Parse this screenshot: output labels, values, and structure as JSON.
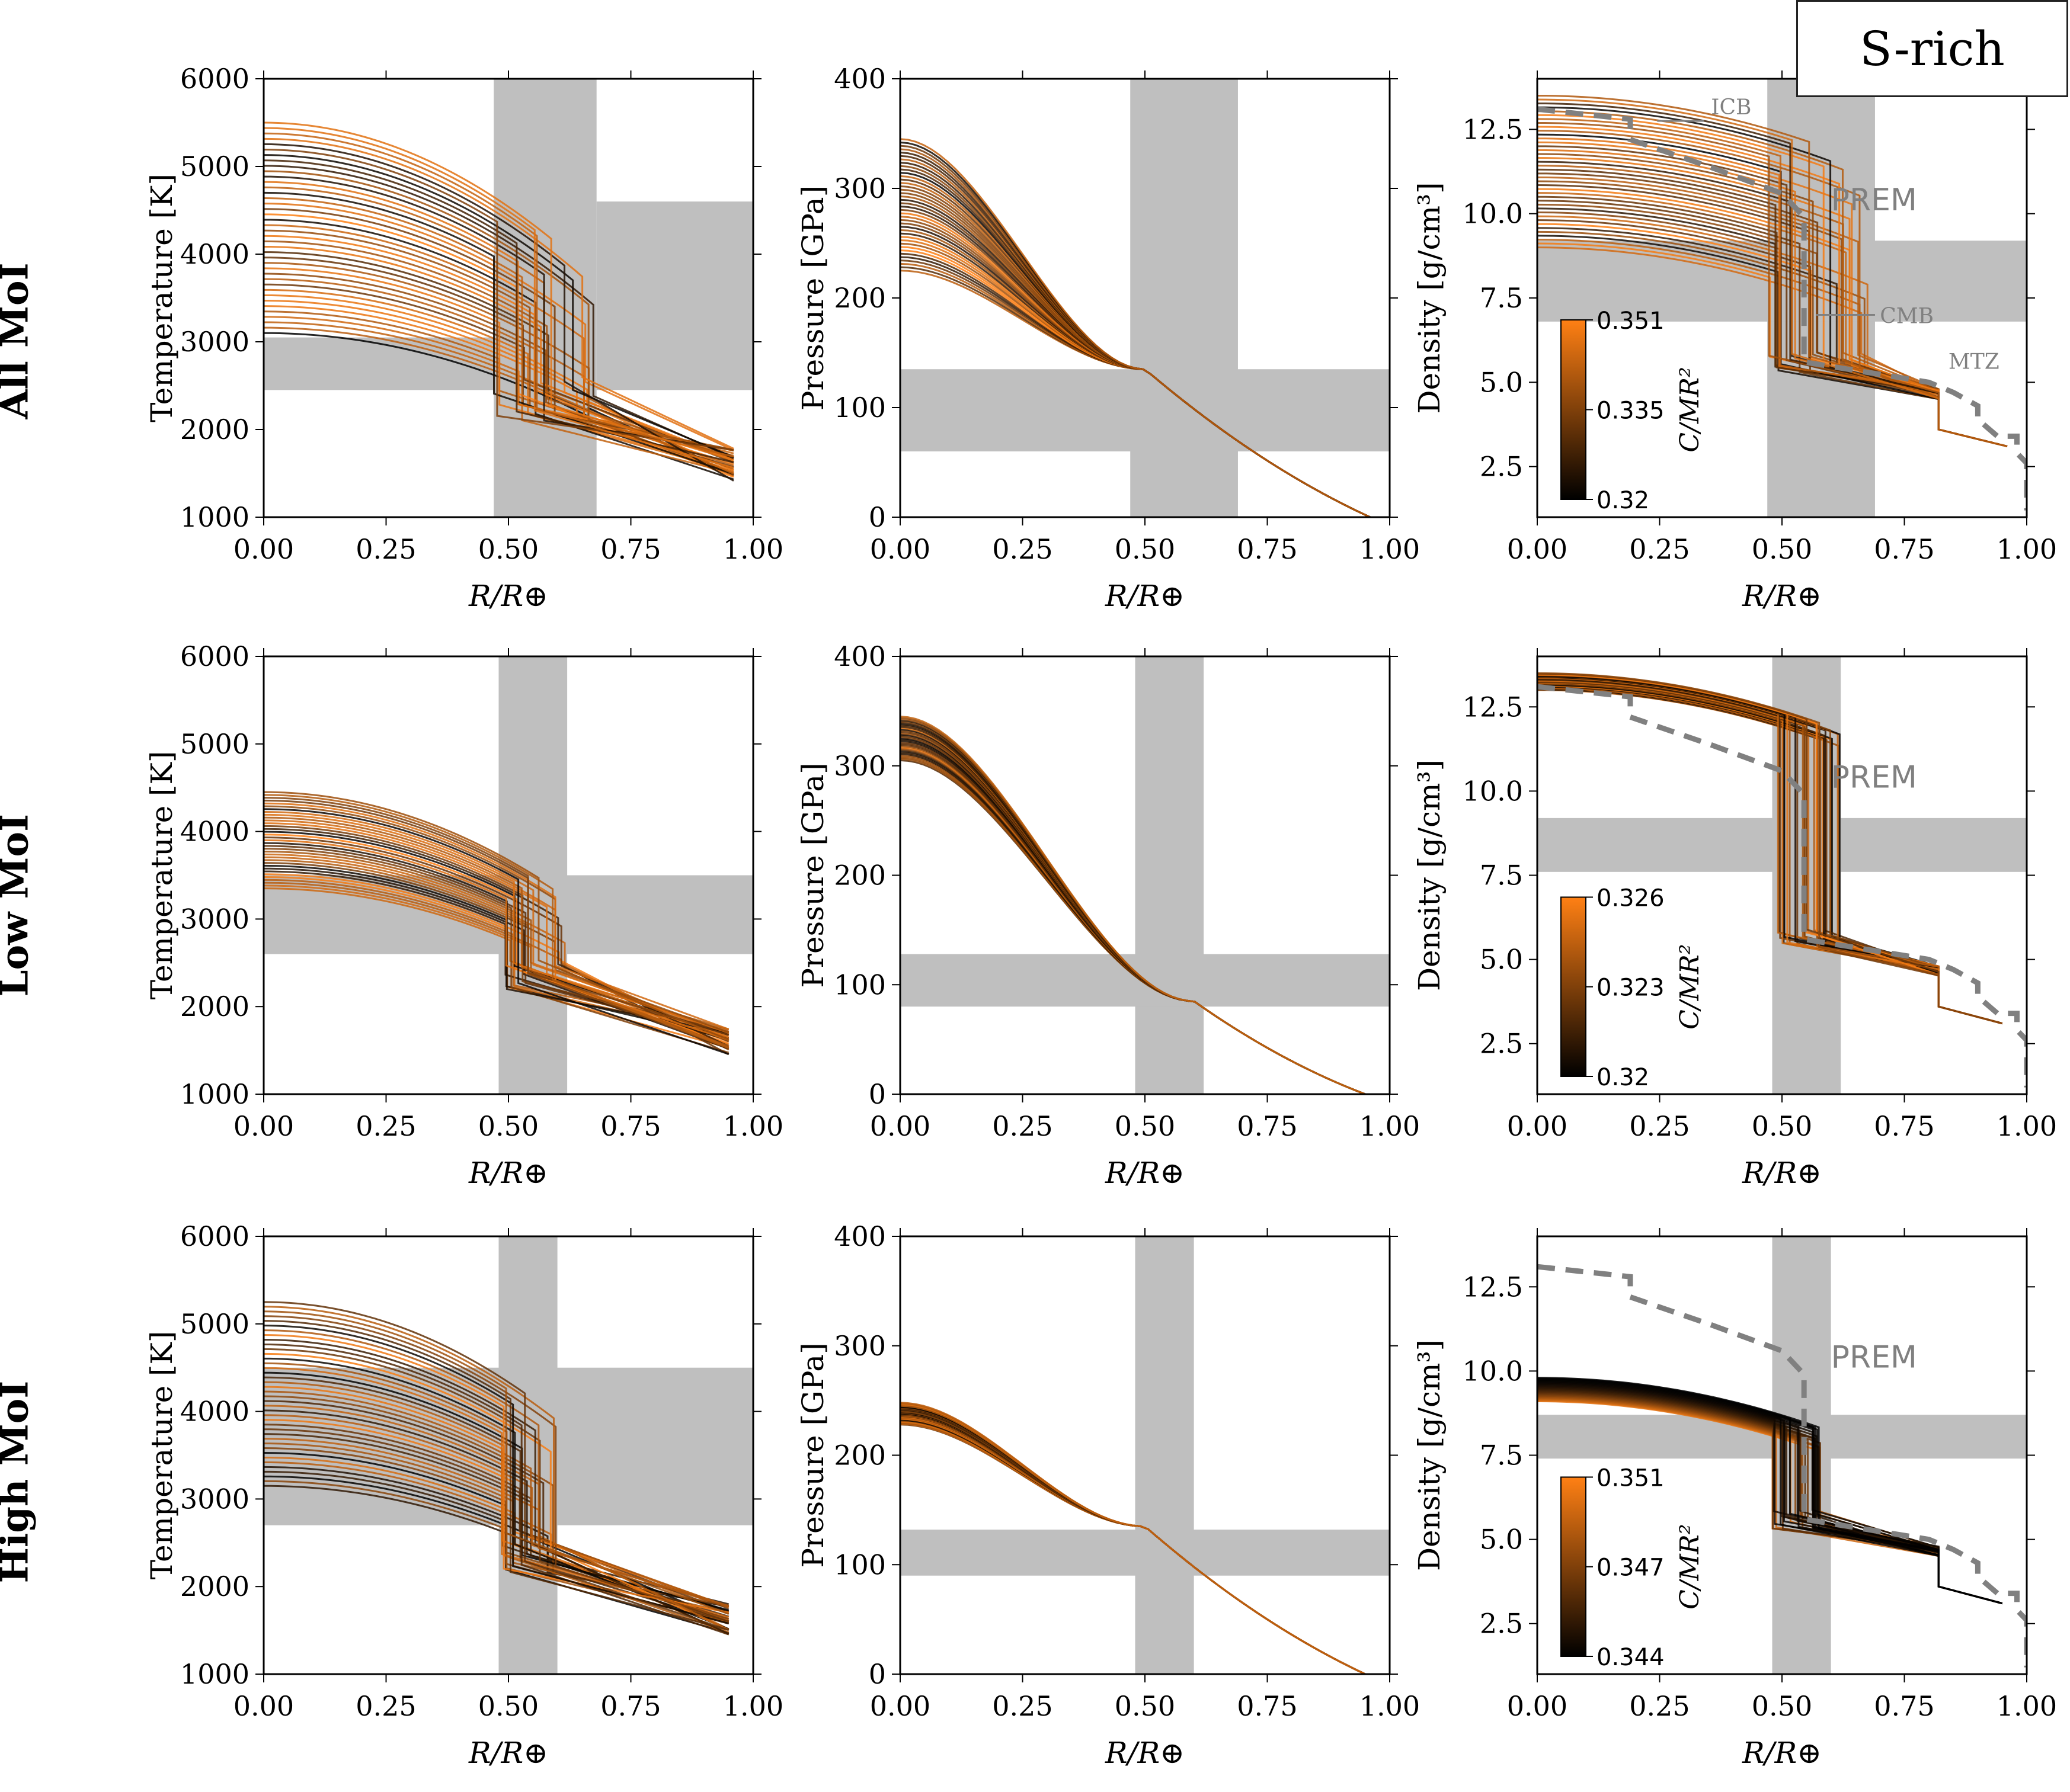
{
  "badge": "S-rich",
  "rows": [
    "All MoI",
    "Low MoI",
    "High MoI"
  ],
  "chart_data": [
    {
      "type": "line",
      "panel": "All MoI / temperature",
      "xlabel": "R/R⊕",
      "ylabel": "Temperature [K]",
      "xlim": [
        0,
        1
      ],
      "ylim": [
        1000,
        6000
      ],
      "xticks": [
        "0.00",
        "0.25",
        "0.50",
        "0.75",
        "1.00"
      ],
      "yticks": [
        "1000",
        "2000",
        "3000",
        "4000",
        "5000",
        "6000"
      ],
      "bands": {
        "x": [
          0.47,
          0.68
        ],
        "y_lo": [
          2450,
          4600
        ],
        "y_hi": [
          2450,
          4600
        ],
        "x_split": 0.68
      },
      "ensemble": {
        "n": 40,
        "center": [
          3100,
          5500
        ],
        "cmb_x": [
          0.47,
          0.68
        ],
        "mantle_start": [
          2100,
          2600
        ],
        "mantle_end": [
          1400,
          1800
        ],
        "end_x": 0.96
      }
    },
    {
      "type": "line",
      "panel": "All MoI / pressure",
      "xlabel": "R/R⊕",
      "ylabel": "Pressure [GPa]",
      "xlim": [
        0,
        1
      ],
      "ylim": [
        0,
        400
      ],
      "xticks": [
        "0.00",
        "0.25",
        "0.50",
        "0.75",
        "1.00"
      ],
      "yticks": [
        "0",
        "100",
        "200",
        "300",
        "400"
      ],
      "bands": {
        "x": [
          0.47,
          0.69
        ],
        "y": [
          60,
          135
        ]
      },
      "ensemble": {
        "n": 40,
        "center": [
          225,
          345
        ],
        "merge_x": 0.5,
        "merge_p": 135,
        "end_x": 0.96
      }
    },
    {
      "type": "line",
      "panel": "All MoI / density",
      "xlabel": "R/R⊕",
      "ylabel": "Density [g/cm³]",
      "xlim": [
        0,
        1
      ],
      "ylim": [
        1,
        14
      ],
      "xticks": [
        "0.00",
        "0.25",
        "0.50",
        "0.75",
        "1.00"
      ],
      "yticks": [
        "2.5",
        "5.0",
        "7.5",
        "10.0",
        "12.5"
      ],
      "bands": {
        "x": [
          0.47,
          0.69
        ],
        "y": [
          6.8,
          9.2
        ]
      },
      "annotations": [
        "ICB",
        "CMB",
        "MTZ"
      ],
      "prem_label": "PREM",
      "colorbar": {
        "label": "C/MR²",
        "ticks": [
          "0.351",
          "0.335",
          "0.32"
        ]
      },
      "ensemble": {
        "n": 40,
        "center": [
          9,
          13.5
        ],
        "cmb_x": [
          0.47,
          0.68
        ],
        "end_x": 0.96
      }
    },
    {
      "type": "line",
      "panel": "Low MoI / temperature",
      "xlabel": "R/R⊕",
      "ylabel": "Temperature [K]",
      "xlim": [
        0,
        1
      ],
      "ylim": [
        1000,
        6000
      ],
      "xticks": [
        "0.00",
        "0.25",
        "0.50",
        "0.75",
        "1.00"
      ],
      "yticks": [
        "1000",
        "2000",
        "3000",
        "4000",
        "5000",
        "6000"
      ],
      "bands": {
        "x": [
          0.48,
          0.62
        ],
        "y": [
          2600,
          3500
        ]
      },
      "ensemble": {
        "n": 35,
        "center": [
          3350,
          4450
        ],
        "cmb_x": [
          0.49,
          0.62
        ],
        "mantle_start": [
          2200,
          2550
        ],
        "mantle_end": [
          1450,
          1750
        ],
        "end_x": 0.95
      }
    },
    {
      "type": "line",
      "panel": "Low MoI / pressure",
      "xlabel": "R/R⊕",
      "ylabel": "Pressure [GPa]",
      "xlim": [
        0,
        1
      ],
      "ylim": [
        0,
        400
      ],
      "xticks": [
        "0.00",
        "0.25",
        "0.50",
        "0.75",
        "1.00"
      ],
      "yticks": [
        "0",
        "100",
        "200",
        "300",
        "400"
      ],
      "bands": {
        "x": [
          0.48,
          0.62
        ],
        "y": [
          80,
          128
        ]
      },
      "ensemble": {
        "n": 35,
        "center": [
          305,
          345
        ],
        "merge_x": 0.6,
        "merge_p": 85,
        "end_x": 0.95
      }
    },
    {
      "type": "line",
      "panel": "Low MoI / density",
      "xlabel": "R/R⊕",
      "ylabel": "Density [g/cm³]",
      "xlim": [
        0,
        1
      ],
      "ylim": [
        1,
        14
      ],
      "xticks": [
        "0.00",
        "0.25",
        "0.50",
        "0.75",
        "1.00"
      ],
      "yticks": [
        "2.5",
        "5.0",
        "7.5",
        "10.0",
        "12.5"
      ],
      "bands": {
        "x": [
          0.48,
          0.62
        ],
        "y": [
          7.6,
          9.2
        ]
      },
      "prem_label": "PREM",
      "colorbar": {
        "label": "C/MR²",
        "ticks": [
          "0.326",
          "0.323",
          "0.32"
        ]
      },
      "ensemble": {
        "n": 35,
        "center": [
          13.0,
          13.5
        ],
        "cmb_x": [
          0.49,
          0.62
        ],
        "end_x": 0.95
      }
    },
    {
      "type": "line",
      "panel": "High MoI / temperature",
      "xlabel": "R/R⊕",
      "ylabel": "Temperature [K]",
      "xlim": [
        0,
        1
      ],
      "ylim": [
        1000,
        6000
      ],
      "xticks": [
        "0.00",
        "0.25",
        "0.50",
        "0.75",
        "1.00"
      ],
      "yticks": [
        "1000",
        "2000",
        "3000",
        "4000",
        "5000",
        "6000"
      ],
      "bands": {
        "x": [
          0.48,
          0.6
        ],
        "y": [
          2700,
          4500
        ]
      },
      "ensemble": {
        "n": 40,
        "center": [
          3150,
          5250
        ],
        "cmb_x": [
          0.48,
          0.6
        ],
        "mantle_start": [
          2150,
          2650
        ],
        "mantle_end": [
          1450,
          1800
        ],
        "end_x": 0.95
      }
    },
    {
      "type": "line",
      "panel": "High MoI / pressure",
      "xlabel": "R/R⊕",
      "ylabel": "Pressure [GPa]",
      "xlim": [
        0,
        1
      ],
      "ylim": [
        0,
        400
      ],
      "xticks": [
        "0.00",
        "0.25",
        "0.50",
        "0.75",
        "1.00"
      ],
      "yticks": [
        "0",
        "100",
        "200",
        "300",
        "400"
      ],
      "bands": {
        "x": [
          0.48,
          0.6
        ],
        "y": [
          90,
          132
        ]
      },
      "ensemble": {
        "n": 35,
        "center": [
          228,
          248
        ],
        "merge_x": 0.5,
        "merge_p": 135,
        "end_x": 0.95
      }
    },
    {
      "type": "line",
      "panel": "High MoI / density",
      "xlabel": "R/R⊕",
      "ylabel": "Density [g/cm³]",
      "xlim": [
        0,
        1
      ],
      "ylim": [
        1,
        14
      ],
      "xticks": [
        "0.00",
        "0.25",
        "0.50",
        "0.75",
        "1.00"
      ],
      "yticks": [
        "2.5",
        "5.0",
        "7.5",
        "10.0",
        "12.5"
      ],
      "bands": {
        "x": [
          0.48,
          0.6
        ],
        "y": [
          7.4,
          8.7
        ]
      },
      "prem_label": "PREM",
      "colorbar": {
        "label": "C/MR²",
        "ticks": [
          "0.351",
          "0.347",
          "0.344"
        ]
      },
      "ensemble": {
        "n": 35,
        "center": [
          9.1,
          9.8
        ],
        "cmb_x": [
          0.48,
          0.58
        ],
        "end_x": 0.95
      }
    }
  ]
}
